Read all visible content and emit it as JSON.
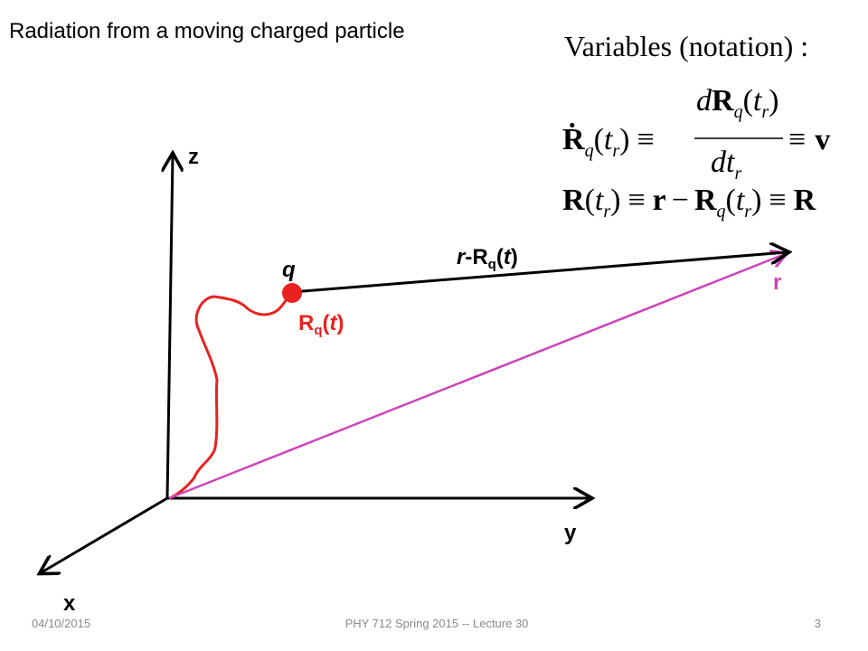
{
  "title": "Radiation from a moving charged particle",
  "notation": {
    "heading": "Variables (notation) :",
    "eq1": [
      "Ṙ",
      "q",
      "(",
      "t",
      "r",
      ")",
      "≡",
      "d",
      "R",
      "q",
      "(",
      "t",
      "r",
      ")",
      "dt",
      "r",
      "≡",
      "v"
    ],
    "eq2": [
      "R",
      "(",
      "t",
      "r",
      ")",
      "≡",
      "r",
      "−",
      "R",
      "q",
      "(",
      "t",
      "r",
      ")",
      "≡",
      "R"
    ]
  },
  "axes": {
    "z": "z",
    "y": "y",
    "x": "x"
  },
  "labels": {
    "charge": "q",
    "field_point": "r",
    "separation": [
      "r",
      "-R",
      "q",
      "(",
      "t",
      ")"
    ],
    "trajectory": [
      "R",
      "q",
      "(",
      "t",
      ")"
    ]
  },
  "footer": {
    "date": "04/10/2015",
    "course": "PHY 712  Spring 2015 -- Lecture 30",
    "page": "3"
  }
}
